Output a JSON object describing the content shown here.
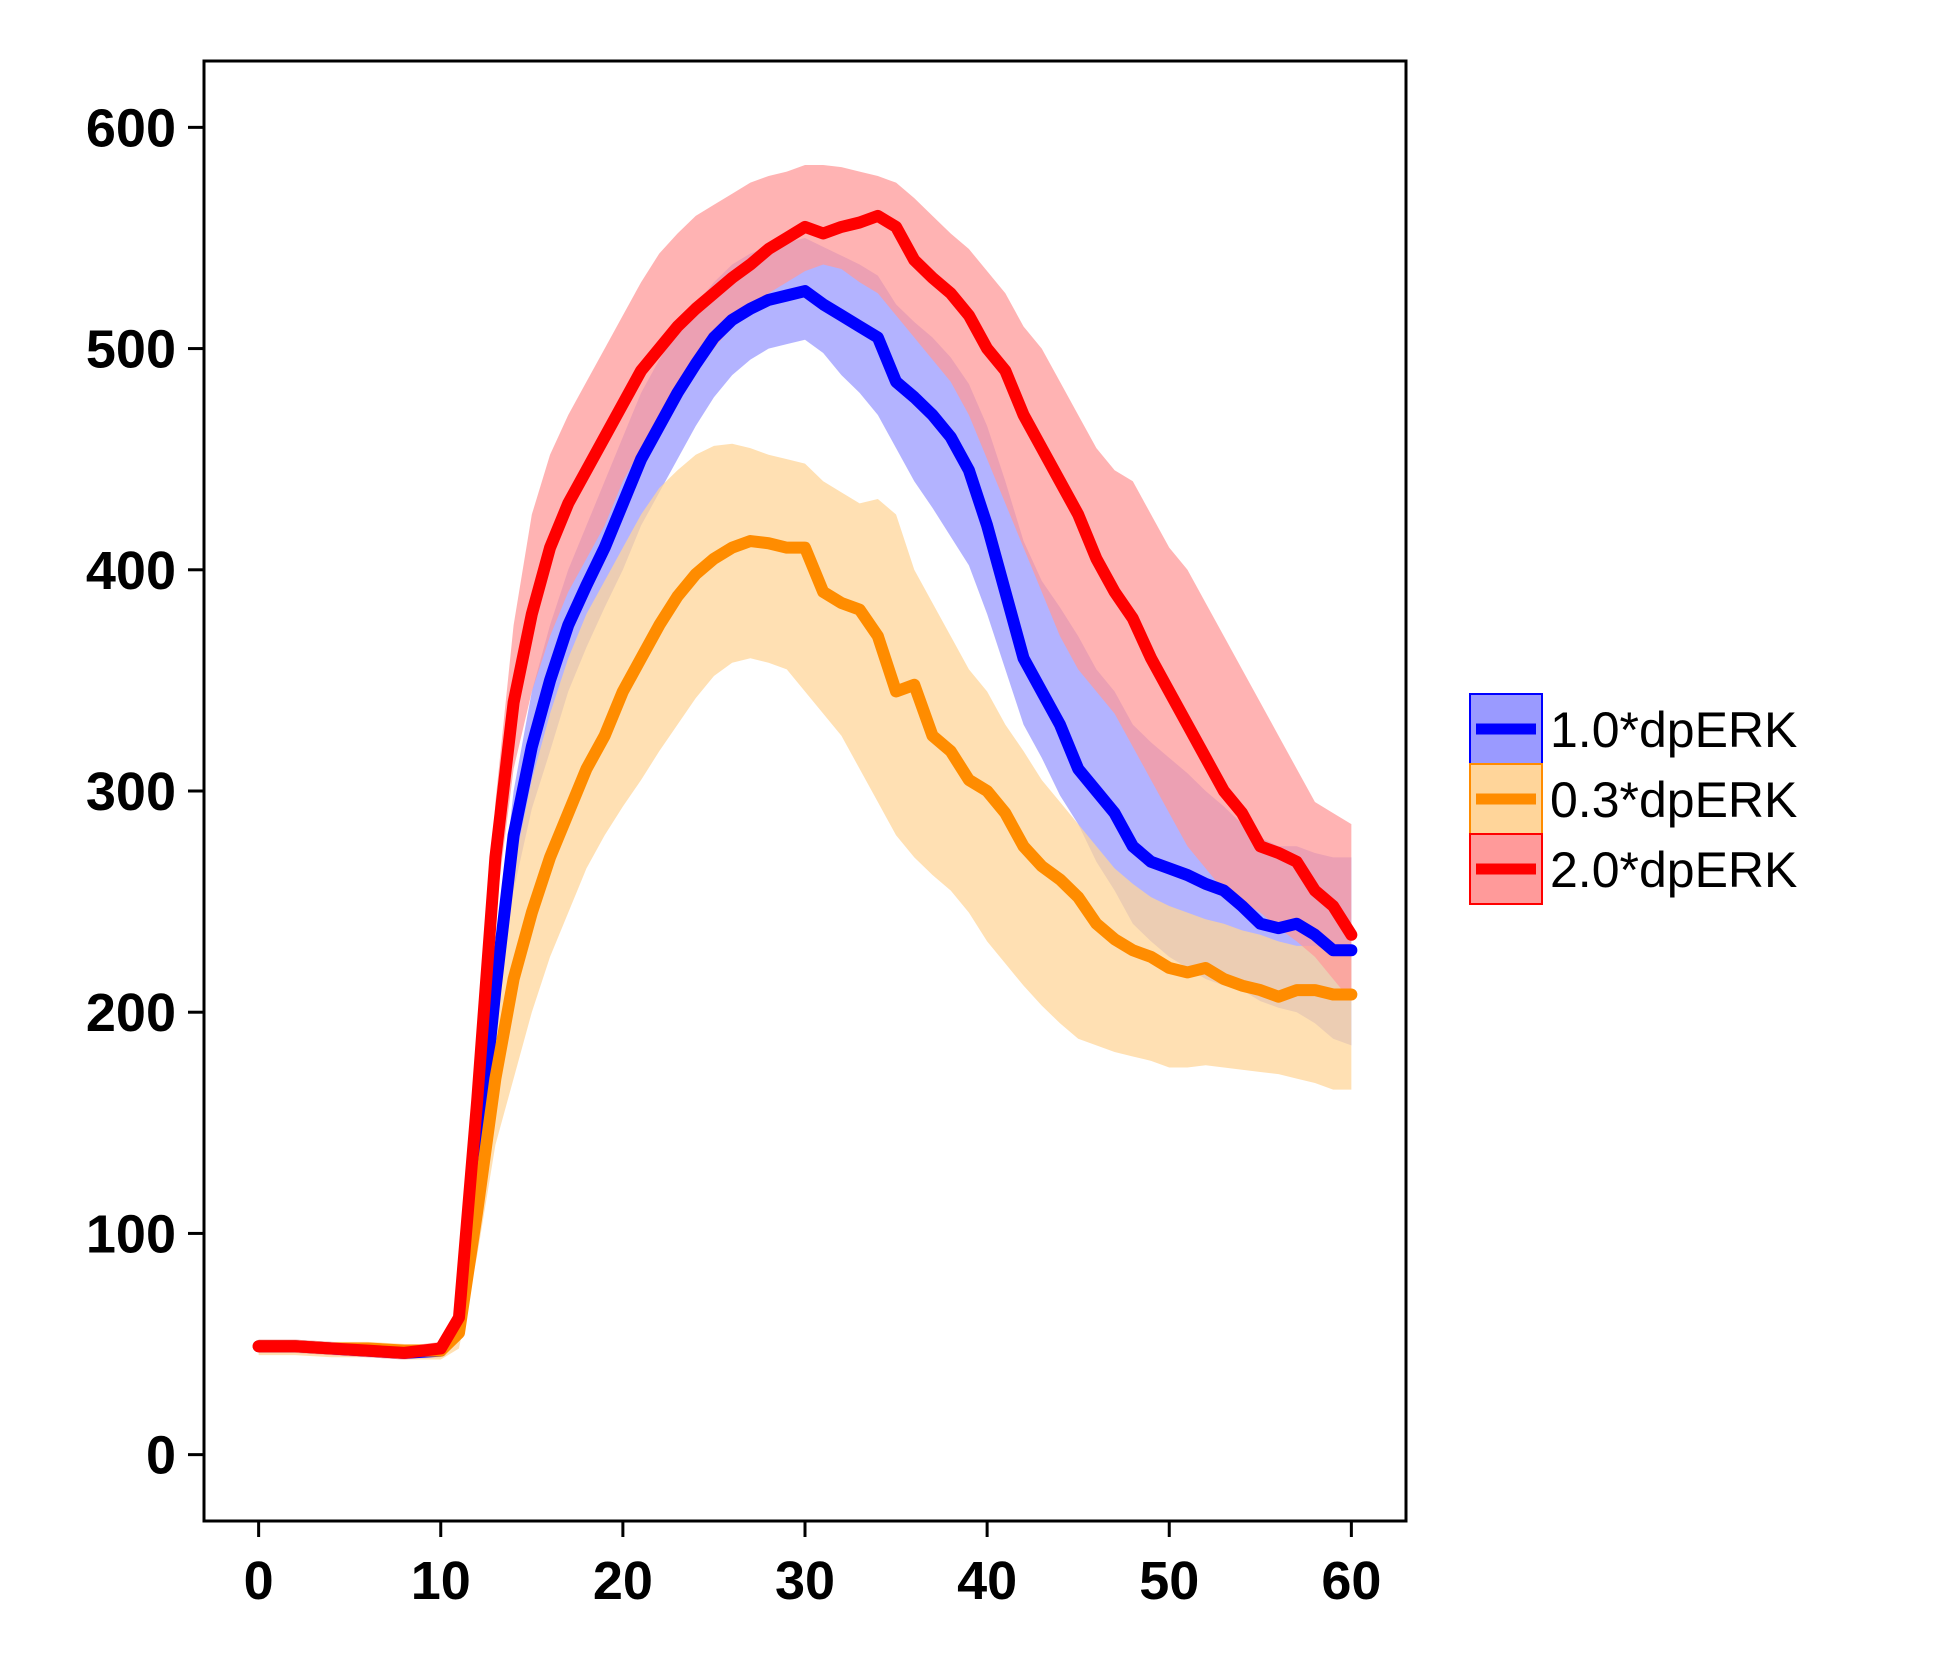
{
  "chart_data": {
    "type": "line",
    "title": "",
    "xlabel": "",
    "ylabel": "",
    "xlim": [
      -3,
      63
    ],
    "ylim": [
      -30,
      630
    ],
    "xticks": [
      0,
      10,
      20,
      30,
      40,
      50,
      60
    ],
    "yticks": [
      0,
      100,
      200,
      300,
      400,
      500,
      600
    ],
    "xtick_labels": [
      "0",
      "10",
      "20",
      "30",
      "40",
      "50",
      "60"
    ],
    "ytick_labels": [
      "0",
      "100",
      "200",
      "300",
      "400",
      "500",
      "600"
    ],
    "grid": false,
    "legend_position": "right",
    "series": [
      {
        "name": "1.0*dpERK",
        "color": "#0000ff",
        "band_color": "#9a9aff",
        "x": [
          0,
          2,
          4,
          6,
          8,
          10,
          11,
          12,
          13,
          14,
          15,
          16,
          17,
          18,
          19,
          20,
          21,
          22,
          23,
          24,
          25,
          26,
          27,
          28,
          29,
          30,
          31,
          32,
          33,
          34,
          35,
          36,
          37,
          38,
          39,
          40,
          41,
          42,
          43,
          44,
          45,
          46,
          47,
          48,
          49,
          50,
          51,
          52,
          53,
          54,
          55,
          56,
          57,
          58,
          59,
          60
        ],
        "y": [
          49,
          49,
          48,
          47,
          46,
          47,
          60,
          130,
          210,
          280,
          320,
          350,
          375,
          393,
          410,
          430,
          450,
          465,
          480,
          493,
          505,
          513,
          518,
          522,
          524,
          526,
          520,
          515,
          510,
          505,
          485,
          478,
          470,
          460,
          445,
          420,
          390,
          360,
          345,
          330,
          310,
          300,
          290,
          275,
          268,
          265,
          262,
          258,
          255,
          248,
          240,
          238,
          240,
          235,
          228,
          228
        ],
        "upper": [
          52,
          52,
          51,
          50,
          49,
          50,
          65,
          140,
          225,
          300,
          345,
          375,
          400,
          420,
          440,
          460,
          480,
          495,
          508,
          520,
          530,
          538,
          543,
          546,
          548,
          550,
          546,
          542,
          538,
          533,
          520,
          512,
          505,
          496,
          484,
          465,
          440,
          413,
          395,
          383,
          370,
          355,
          345,
          330,
          322,
          315,
          308,
          300,
          293,
          285,
          279,
          275,
          275,
          272,
          270,
          270
        ],
        "lower": [
          46,
          46,
          45,
          44,
          43,
          44,
          55,
          118,
          192,
          255,
          292,
          318,
          345,
          365,
          383,
          400,
          420,
          435,
          450,
          465,
          478,
          488,
          495,
          500,
          502,
          504,
          498,
          488,
          480,
          470,
          455,
          440,
          428,
          415,
          402,
          380,
          355,
          330,
          315,
          298,
          285,
          268,
          255,
          240,
          232,
          225,
          220,
          215,
          212,
          210,
          205,
          202,
          200,
          195,
          188,
          185
        ]
      },
      {
        "name": "0.3*dpERK",
        "color": "#ff8c00",
        "band_color": "#ffd59a",
        "x": [
          0,
          2,
          4,
          6,
          8,
          10,
          11,
          12,
          13,
          14,
          15,
          16,
          17,
          18,
          19,
          20,
          21,
          22,
          23,
          24,
          25,
          26,
          27,
          28,
          29,
          30,
          31,
          32,
          33,
          34,
          35,
          36,
          37,
          38,
          39,
          40,
          41,
          42,
          43,
          44,
          45,
          46,
          47,
          48,
          49,
          50,
          51,
          52,
          53,
          54,
          55,
          56,
          57,
          58,
          59,
          60
        ],
        "y": [
          49,
          49,
          48,
          48,
          47,
          47,
          55,
          110,
          170,
          215,
          245,
          270,
          290,
          310,
          325,
          345,
          360,
          375,
          388,
          398,
          405,
          410,
          413,
          412,
          410,
          410,
          390,
          385,
          382,
          370,
          345,
          348,
          325,
          318,
          305,
          300,
          290,
          275,
          266,
          260,
          252,
          240,
          233,
          228,
          225,
          220,
          218,
          220,
          215,
          212,
          210,
          207,
          210,
          210,
          208,
          208
        ],
        "upper": [
          52,
          52,
          51,
          51,
          50,
          50,
          62,
          130,
          205,
          265,
          305,
          335,
          360,
          380,
          395,
          410,
          425,
          437,
          445,
          452,
          456,
          457,
          455,
          452,
          450,
          448,
          440,
          435,
          430,
          432,
          425,
          400,
          385,
          370,
          355,
          345,
          330,
          318,
          305,
          295,
          285,
          275,
          265,
          258,
          252,
          248,
          245,
          242,
          240,
          237,
          235,
          232,
          230,
          230,
          228,
          228
        ],
        "lower": [
          45,
          45,
          44,
          44,
          43,
          43,
          48,
          90,
          140,
          170,
          200,
          225,
          245,
          265,
          280,
          293,
          305,
          318,
          330,
          342,
          352,
          358,
          360,
          358,
          355,
          345,
          335,
          325,
          310,
          295,
          280,
          270,
          262,
          255,
          245,
          232,
          222,
          212,
          203,
          195,
          188,
          185,
          182,
          180,
          178,
          175,
          175,
          176,
          175,
          174,
          173,
          172,
          170,
          168,
          165,
          165
        ]
      },
      {
        "name": "2.0*dpERK",
        "color": "#ff0000",
        "band_color": "#ff9a9a",
        "x": [
          0,
          2,
          4,
          6,
          8,
          10,
          11,
          12,
          13,
          14,
          15,
          16,
          17,
          18,
          19,
          20,
          21,
          22,
          23,
          24,
          25,
          26,
          27,
          28,
          29,
          30,
          31,
          32,
          33,
          34,
          35,
          36,
          37,
          38,
          39,
          40,
          41,
          42,
          43,
          44,
          45,
          46,
          47,
          48,
          49,
          50,
          51,
          52,
          53,
          54,
          55,
          56,
          57,
          58,
          59,
          60
        ],
        "y": [
          49,
          49,
          48,
          47,
          46,
          48,
          62,
          160,
          270,
          340,
          380,
          410,
          430,
          445,
          460,
          475,
          490,
          500,
          510,
          518,
          525,
          532,
          538,
          545,
          550,
          555,
          552,
          555,
          557,
          560,
          555,
          540,
          532,
          525,
          515,
          500,
          490,
          470,
          455,
          440,
          425,
          405,
          390,
          378,
          360,
          345,
          330,
          315,
          300,
          290,
          275,
          272,
          268,
          255,
          248,
          235
        ],
        "upper": [
          52,
          52,
          51,
          50,
          49,
          51,
          68,
          175,
          295,
          375,
          425,
          452,
          470,
          485,
          500,
          515,
          530,
          543,
          552,
          560,
          565,
          570,
          575,
          578,
          580,
          583,
          583,
          582,
          580,
          578,
          575,
          568,
          560,
          552,
          545,
          535,
          525,
          510,
          500,
          485,
          470,
          455,
          445,
          440,
          425,
          410,
          400,
          385,
          370,
          355,
          340,
          325,
          310,
          295,
          290,
          285
        ],
        "lower": [
          46,
          46,
          45,
          44,
          43,
          45,
          56,
          145,
          245,
          310,
          345,
          370,
          390,
          405,
          420,
          440,
          455,
          465,
          478,
          490,
          500,
          510,
          518,
          525,
          530,
          535,
          538,
          536,
          530,
          525,
          515,
          505,
          495,
          485,
          470,
          450,
          430,
          410,
          390,
          370,
          355,
          345,
          335,
          320,
          305,
          290,
          275,
          265,
          255,
          250,
          245,
          238,
          232,
          225,
          215,
          205
        ]
      }
    ]
  }
}
